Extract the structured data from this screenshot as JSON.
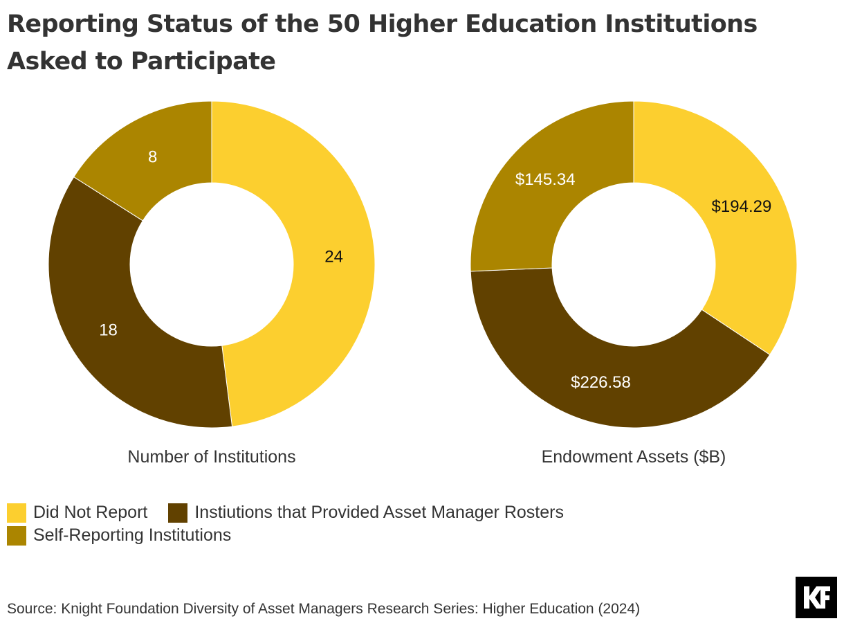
{
  "title": "Reporting Status of the 50 Higher Education Institutions Asked to Participate",
  "colors": {
    "did_not_report": "#FCCF2F",
    "provided_rosters": "#614100",
    "self_reporting": "#AB8500",
    "label_dark": "#111111",
    "label_light": "#FFFFFF"
  },
  "legend": {
    "items": [
      {
        "label": "Did Not Report",
        "color": "#FCCF2F"
      },
      {
        "label": "Instiutions that Provided Asset Manager Rosters",
        "color": "#614100"
      },
      {
        "label": "Self-Reporting Institutions",
        "color": "#AB8500"
      }
    ]
  },
  "chart_data": [
    {
      "type": "pie",
      "donut": true,
      "xlabel": "Number of Institutions",
      "categories": [
        "Did Not Report",
        "Instiutions that Provided Asset Manager Rosters",
        "Self-Reporting Institutions"
      ],
      "values": [
        24,
        18,
        8
      ],
      "data_labels": [
        "24",
        "18",
        "8"
      ]
    },
    {
      "type": "pie",
      "donut": true,
      "xlabel": "Endowment Assets ($B)",
      "categories": [
        "Did Not Report",
        "Instiutions that Provided Asset Manager Rosters",
        "Self-Reporting Institutions"
      ],
      "values": [
        194.29,
        226.58,
        145.34
      ],
      "data_labels": [
        "$194.29",
        "$226.58",
        "$145.34"
      ]
    }
  ],
  "source": "Source: Knight Foundation Diversity of Asset Managers Research Series: Higher Education (2024)",
  "logo": {
    "text": "KF"
  }
}
